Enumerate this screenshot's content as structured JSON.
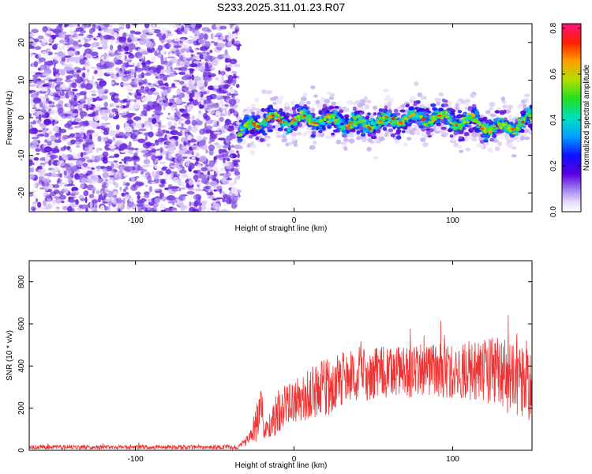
{
  "title": "S233.2025.311.01.23.R07",
  "chart_data": [
    {
      "type": "heatmap",
      "xlabel": "Height of straight line (km)",
      "ylabel": "Frequency (Hz)",
      "xlim": [
        -167,
        150
      ],
      "ylim": [
        -25,
        25
      ],
      "xticks": [
        -100,
        0,
        100
      ],
      "yticks": [
        -20,
        -10,
        0,
        10,
        20
      ],
      "description_data": {
        "noise_region_x": [
          -167,
          -35
        ],
        "signal_start_x": -35,
        "signal_center_freq_hz": [
          [
            -35,
            -5
          ],
          [
            -30,
            -3
          ],
          [
            -25,
            -1
          ],
          [
            -20,
            -1
          ],
          [
            -10,
            0
          ],
          [
            0,
            -1
          ],
          [
            10,
            0
          ],
          [
            20,
            -1
          ],
          [
            30,
            -1
          ],
          [
            40,
            -2
          ],
          [
            45,
            -2
          ],
          [
            50,
            -1
          ],
          [
            60,
            -1
          ],
          [
            70,
            0
          ],
          [
            80,
            0
          ],
          [
            90,
            0
          ],
          [
            100,
            -1
          ],
          [
            110,
            -1
          ],
          [
            120,
            -2
          ],
          [
            130,
            -3
          ],
          [
            140,
            -2
          ],
          [
            150,
            0
          ]
        ]
      },
      "colorbar": {
        "label": "Normalized spectral amplitude",
        "range": [
          0,
          0.82
        ],
        "ticks": [
          "0.0",
          "0.2",
          "0.4",
          "0.6",
          "0.8"
        ]
      }
    },
    {
      "type": "line",
      "xlabel": "Height of straight line (km)",
      "ylabel": "SNR (10 * v/v)",
      "xlim": [
        -167,
        150
      ],
      "ylim": [
        0,
        900
      ],
      "xticks": [
        -100,
        0,
        100
      ],
      "yticks": [
        0,
        200,
        400,
        600,
        800
      ],
      "series": [
        {
          "name": "SNR",
          "color": "#ee3333",
          "envelope": {
            "x": [
              -167,
              -100,
              -35,
              -28,
              -24,
              -22,
              -18,
              -15,
              -10,
              -5,
              0,
              10,
              20,
              30,
              40,
              60,
              80,
              100,
              110,
              120,
              130,
              140,
              145,
              150
            ],
            "base": [
              15,
              15,
              15,
              60,
              120,
              220,
              90,
              120,
              170,
              220,
              240,
              270,
              300,
              330,
              360,
              370,
              380,
              380,
              380,
              380,
              370,
              360,
              330,
              290
            ],
            "amp": [
              15,
              15,
              15,
              40,
              120,
              230,
              60,
              100,
              130,
              140,
              150,
              180,
              200,
              190,
              180,
              180,
              180,
              190,
              200,
              220,
              260,
              300,
              300,
              260
            ]
          }
        }
      ]
    }
  ]
}
